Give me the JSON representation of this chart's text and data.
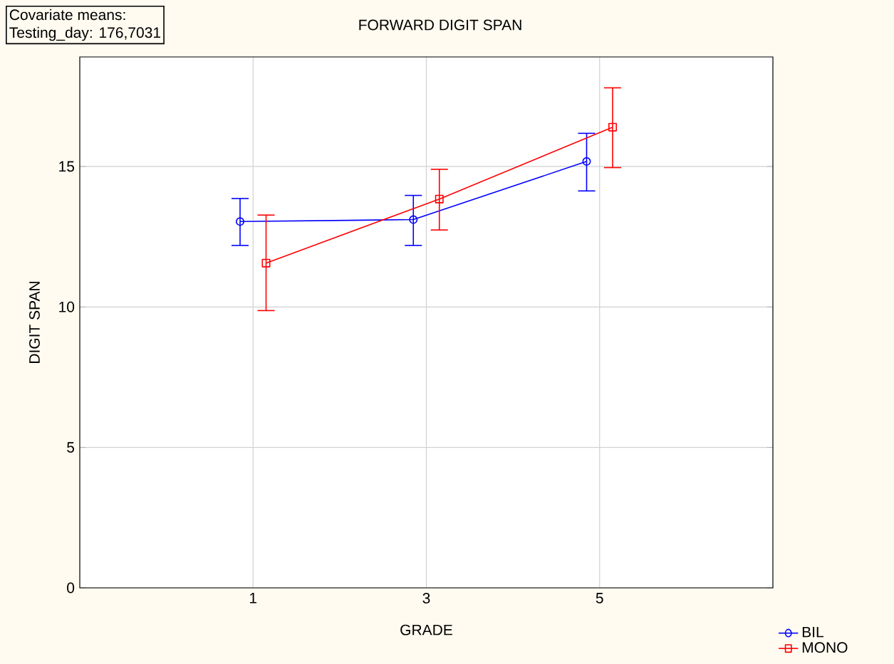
{
  "chart_data": {
    "type": "line",
    "title": "FORWARD DIGIT SPAN",
    "xlabel": "GRADE",
    "ylabel": "DIGIT SPAN",
    "annotations": [
      "Covariate means:",
      "Testing_day: 176,7031"
    ],
    "categories": [
      "1",
      "3",
      "5"
    ],
    "series": [
      {
        "name": "BIL",
        "color": "#0000ff",
        "marker": "circle",
        "values": [
          13.04,
          13.11,
          15.18
        ],
        "errors": [
          [
            12.19,
            13.86
          ],
          [
            12.19,
            13.97
          ],
          [
            14.13,
            16.18
          ]
        ]
      },
      {
        "name": "MONO",
        "color": "#ff0000",
        "marker": "square",
        "values": [
          11.56,
          13.84,
          16.4
        ],
        "errors": [
          [
            9.87,
            13.27
          ],
          [
            12.74,
            14.9
          ],
          [
            14.96,
            17.8
          ]
        ]
      }
    ],
    "ylim": [
      0,
      18.9
    ],
    "yticks": [
      0,
      5,
      10,
      15
    ],
    "grid": true,
    "legend": "bottom right",
    "line_style": "solid"
  }
}
